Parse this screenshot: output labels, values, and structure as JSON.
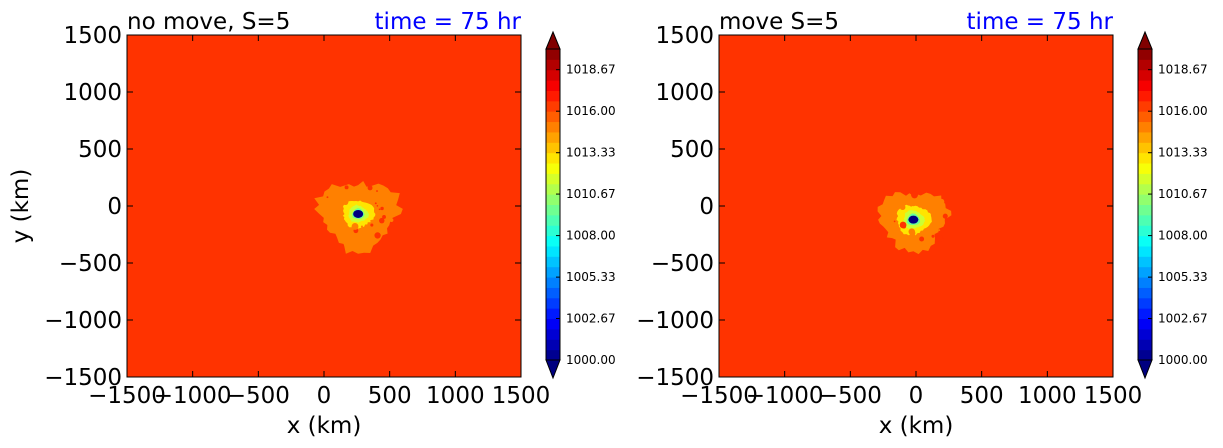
{
  "chart_data": [
    {
      "type": "heatmap",
      "title": "no move, S=5",
      "time_label": "time = 75 hr",
      "xlabel": "x (km)",
      "ylabel": "y (km)",
      "xlim": [
        -1500,
        1500
      ],
      "ylim": [
        -1500,
        1500
      ],
      "xticks": [
        -1500,
        -1000,
        -500,
        0,
        500,
        1000,
        1500
      ],
      "yticks": [
        -1500,
        -1000,
        -500,
        0,
        500,
        1000,
        1500
      ],
      "xtick_labels": [
        "−1500",
        "−1000",
        "−500",
        "0",
        "500",
        "1000",
        "1500"
      ],
      "ytick_labels": [
        "−1500",
        "−1000",
        "−500",
        "0",
        "500",
        "1000",
        "1500"
      ],
      "background_value": 1016.5,
      "cyclone": {
        "center": [
          260,
          -70
        ],
        "min_value": 1000.0,
        "levels": [
          {
            "value": 1015.0,
            "radius": 300
          },
          {
            "value": 1013.0,
            "radius": 120
          },
          {
            "value": 1011.5,
            "radius": 75
          },
          {
            "value": 1009.5,
            "radius": 45
          },
          {
            "value": 1007.5,
            "radius": 28
          },
          {
            "value": 1004.5,
            "radius": 15
          },
          {
            "value": 1001.5,
            "radius": 7
          }
        ]
      },
      "colorbar": {
        "min": 1000.0,
        "max": 1020.0,
        "extend": "both",
        "tick_values": [
          1000.0,
          1002.67,
          1005.33,
          1008.0,
          1010.67,
          1013.33,
          1016.0,
          1018.67
        ],
        "tick_labels": [
          "1000.00",
          "1002.67",
          "1005.33",
          "1008.00",
          "1010.67",
          "1013.33",
          "1016.00",
          "1018.67"
        ]
      }
    },
    {
      "type": "heatmap",
      "title": "move S=5",
      "time_label": "time = 75 hr",
      "xlabel": "x (km)",
      "ylabel": "",
      "xlim": [
        -1500,
        1500
      ],
      "ylim": [
        -1500,
        1500
      ],
      "xticks": [
        -1500,
        -1000,
        -500,
        0,
        500,
        1000,
        1500
      ],
      "yticks": [
        -1500,
        -1000,
        -500,
        0,
        500,
        1000,
        1500
      ],
      "xtick_labels": [
        "−1500",
        "−1000",
        "−500",
        "0",
        "500",
        "1000",
        "1500"
      ],
      "ytick_labels": [
        "−1500",
        "−1000",
        "−500",
        "0",
        "500",
        "1000",
        "1500"
      ],
      "background_value": 1016.5,
      "cyclone": {
        "center": [
          -20,
          -120
        ],
        "min_value": 1000.0,
        "levels": [
          {
            "value": 1015.0,
            "radius": 260
          },
          {
            "value": 1013.0,
            "radius": 130
          },
          {
            "value": 1011.5,
            "radius": 80
          },
          {
            "value": 1009.5,
            "radius": 50
          },
          {
            "value": 1007.5,
            "radius": 32
          },
          {
            "value": 1004.5,
            "radius": 18
          },
          {
            "value": 1001.5,
            "radius": 9
          }
        ]
      },
      "colorbar": {
        "min": 1000.0,
        "max": 1020.0,
        "extend": "both",
        "tick_values": [
          1000.0,
          1002.67,
          1005.33,
          1008.0,
          1010.67,
          1013.33,
          1016.0,
          1018.67
        ],
        "tick_labels": [
          "1000.00",
          "1002.67",
          "1005.33",
          "1008.00",
          "1010.67",
          "1013.33",
          "1016.00",
          "1018.67"
        ]
      }
    }
  ],
  "colors": {
    "time_label": "#0000ff",
    "text": "#000000",
    "axes": "#000000"
  },
  "colormap": "jet"
}
